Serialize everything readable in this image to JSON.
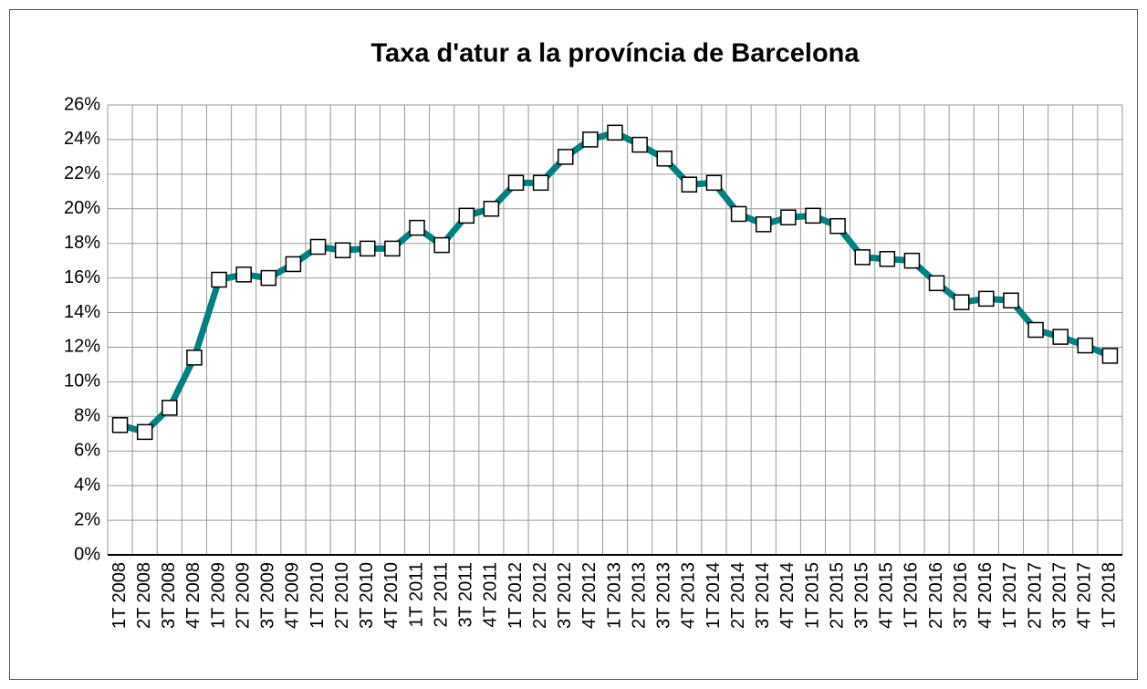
{
  "chart_data": {
    "type": "line",
    "title": "Taxa d'atur a la província de Barcelona",
    "categories": [
      "1T 2008",
      "2T 2008",
      "3T 2008",
      "4T 2008",
      "1T 2009",
      "2T 2009",
      "3T 2009",
      "4T 2009",
      "1T 2010",
      "2T 2010",
      "3T 2010",
      "4T 2010",
      "1T 2011",
      "2T 2011",
      "3T 2011",
      "4T 2011",
      "1T 2012",
      "2T 2012",
      "3T 2012",
      "4T 2012",
      "1T 2013",
      "2T 2013",
      "3T 2013",
      "4T 2013",
      "1T 2014",
      "2T 2014",
      "3T 2014",
      "4T 2014",
      "1T 2015",
      "2T 2015",
      "3T 2015",
      "4T 2015",
      "1T 2016",
      "2T 2016",
      "3T 2016",
      "4T 2016",
      "1T 2017",
      "2T 2017",
      "3T 2017",
      "4T 2017",
      "1T 2018"
    ],
    "series": [
      {
        "color": "#008080",
        "values": [
          7.5,
          7.1,
          8.5,
          11.4,
          15.9,
          16.2,
          16.0,
          16.8,
          17.8,
          17.6,
          17.7,
          17.7,
          18.9,
          17.9,
          19.6,
          20.0,
          21.5,
          21.5,
          23.0,
          24.0,
          24.4,
          23.7,
          22.9,
          21.4,
          21.5,
          19.7,
          19.1,
          19.5,
          19.6,
          19.0,
          17.2,
          17.1,
          17.0,
          15.7,
          14.6,
          14.8,
          14.7,
          13.0,
          12.6,
          12.1,
          11.5
        ]
      }
    ],
    "ylim": [
      0,
      26
    ],
    "yticks": [
      {
        "value": 0,
        "label": "0%"
      },
      {
        "value": 2,
        "label": "2%"
      },
      {
        "value": 4,
        "label": "4%"
      },
      {
        "value": 6,
        "label": "6%"
      },
      {
        "value": 8,
        "label": "8%"
      },
      {
        "value": 10,
        "label": "10%"
      },
      {
        "value": 12,
        "label": "12%"
      },
      {
        "value": 14,
        "label": "14%"
      },
      {
        "value": 16,
        "label": "16%"
      },
      {
        "value": 18,
        "label": "18%"
      },
      {
        "value": 20,
        "label": "20%"
      },
      {
        "value": 22,
        "label": "22%"
      },
      {
        "value": 24,
        "label": "24%"
      },
      {
        "value": 26,
        "label": "26%"
      }
    ],
    "grid": true
  }
}
